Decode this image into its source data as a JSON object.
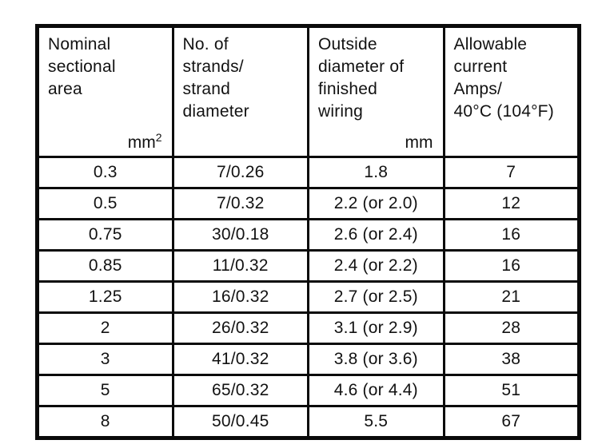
{
  "colors": {
    "line": "#0a0a0a",
    "text": "#121212",
    "background": "#ffffff"
  },
  "table": {
    "columns": [
      {
        "header_lines": [
          "Nominal",
          "sectional",
          "area"
        ],
        "unit": "mm",
        "unit_sup": "2"
      },
      {
        "header_lines": [
          "No. of",
          "strands/",
          "strand",
          "diameter"
        ],
        "unit": "",
        "unit_sup": ""
      },
      {
        "header_lines": [
          "Outside",
          "diameter of",
          "finished",
          "wiring"
        ],
        "unit": "mm",
        "unit_sup": ""
      },
      {
        "header_lines": [
          "Allowable",
          "current",
          "Amps/",
          "40°C (104°F)"
        ],
        "unit": "",
        "unit_sup": ""
      }
    ],
    "rows": [
      [
        "0.3",
        "7/0.26",
        "1.8",
        "7"
      ],
      [
        "0.5",
        "7/0.32",
        "2.2 (or 2.0)",
        "12"
      ],
      [
        "0.75",
        "30/0.18",
        "2.6 (or 2.4)",
        "16"
      ],
      [
        "0.85",
        "11/0.32",
        "2.4 (or 2.2)",
        "16"
      ],
      [
        "1.25",
        "16/0.32",
        "2.7 (or 2.5)",
        "21"
      ],
      [
        "2",
        "26/0.32",
        "3.1 (or 2.9)",
        "28"
      ],
      [
        "3",
        "41/0.32",
        "3.8 (or 3.6)",
        "38"
      ],
      [
        "5",
        "65/0.32",
        "4.6 (or 4.4)",
        "51"
      ],
      [
        "8",
        "50/0.45",
        "5.5",
        "67"
      ]
    ]
  }
}
